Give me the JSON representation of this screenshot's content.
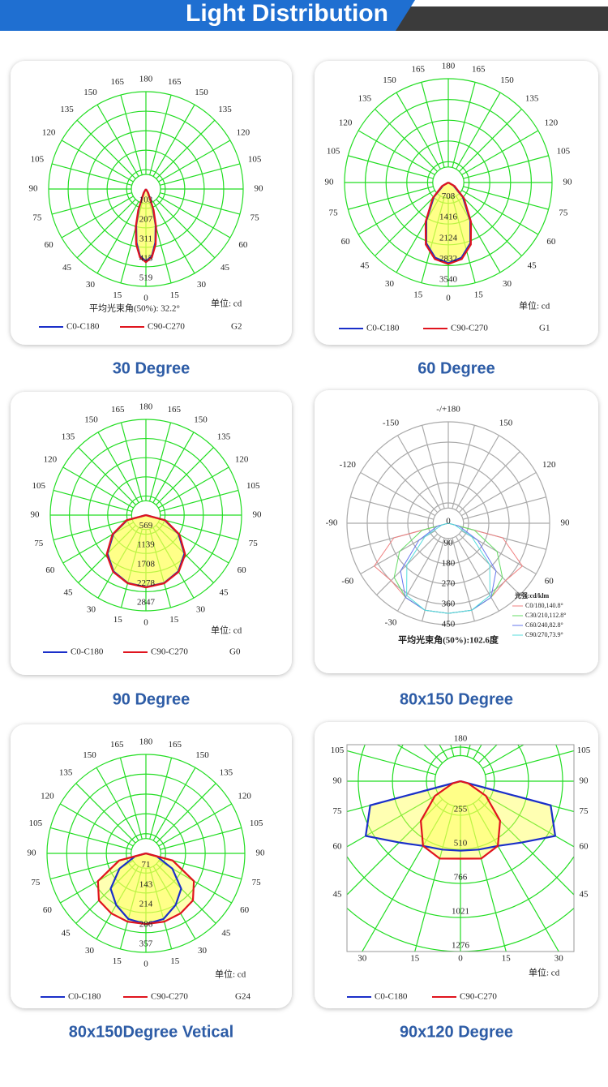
{
  "header": {
    "title": "Light Distribution"
  },
  "chart_data": [
    {
      "type": "polar",
      "title": "30 Degree",
      "note": "平均光束角(50%): 32.2°",
      "unit": "单位: cd",
      "code": "G2",
      "grid_color": "#22dd22",
      "area_color": "#ffff55",
      "angle_ticks": [
        0,
        15,
        30,
        45,
        60,
        75,
        90,
        105,
        120,
        135,
        150,
        165,
        180
      ],
      "rlim": [
        0,
        519
      ],
      "rticks": [
        103,
        207,
        311,
        415,
        519
      ],
      "theta": [
        -45,
        -30,
        -20,
        -15,
        -10,
        -5,
        0,
        5,
        10,
        15,
        20,
        30,
        45
      ],
      "series": [
        {
          "name": "C0-C180",
          "color": "#1a2fc9",
          "values": [
            0,
            20,
            110,
            200,
            290,
            360,
            385,
            360,
            290,
            200,
            110,
            20,
            0
          ]
        },
        {
          "name": "C90-C270",
          "color": "#e0141e",
          "values": [
            0,
            25,
            120,
            210,
            300,
            365,
            390,
            365,
            300,
            210,
            120,
            25,
            0
          ]
        }
      ]
    },
    {
      "type": "polar",
      "title": "60 Degree",
      "unit": "单位: cd",
      "code": "G1",
      "grid_color": "#22dd22",
      "area_color": "#ffff55",
      "angle_ticks": [
        0,
        15,
        30,
        45,
        60,
        75,
        90,
        105,
        120,
        135,
        150,
        165,
        180
      ],
      "rlim": [
        0,
        3540
      ],
      "rticks": [
        708,
        1416,
        2124,
        2832,
        3540
      ],
      "theta": [
        -90,
        -60,
        -45,
        -30,
        -20,
        -10,
        0,
        10,
        20,
        30,
        45,
        60,
        90
      ],
      "series": [
        {
          "name": "C0-C180",
          "color": "#1a2fc9",
          "values": [
            0,
            200,
            700,
            1500,
            2200,
            2600,
            2750,
            2600,
            2200,
            1500,
            700,
            200,
            0
          ]
        },
        {
          "name": "C90-C270",
          "color": "#e0141e",
          "values": [
            0,
            250,
            750,
            1550,
            2250,
            2650,
            2780,
            2650,
            2250,
            1550,
            750,
            250,
            0
          ]
        }
      ]
    },
    {
      "type": "polar",
      "title": "90 Degree",
      "unit": "单位: cd",
      "code": "G0",
      "grid_color": "#22dd22",
      "area_color": "#ffff55",
      "angle_ticks": [
        0,
        15,
        30,
        45,
        60,
        75,
        90,
        105,
        120,
        135,
        150,
        165,
        180
      ],
      "rlim": [
        0,
        2847
      ],
      "rticks": [
        569,
        1139,
        1708,
        2278,
        2847
      ],
      "theta": [
        -90,
        -75,
        -60,
        -45,
        -30,
        -15,
        0,
        15,
        30,
        45,
        60,
        75,
        90
      ],
      "series": [
        {
          "name": "C0-C180",
          "color": "#1a2fc9",
          "values": [
            0,
            580,
            1120,
            1620,
            1930,
            2090,
            2140,
            2090,
            1930,
            1620,
            1120,
            580,
            0
          ]
        },
        {
          "name": "C90-C270",
          "color": "#e0141e",
          "values": [
            0,
            600,
            1150,
            1650,
            1950,
            2100,
            2150,
            2100,
            1950,
            1650,
            1150,
            600,
            0
          ]
        }
      ]
    },
    {
      "type": "polar",
      "title": "80x150 Degree",
      "note": "平均光束角(50%):102.6度",
      "legend_title": "光强:cd/klm",
      "grid_color": "#aaaaaa",
      "angle_ticks": [
        {
          "value": 180,
          "label": "-/+180"
        },
        -150,
        150,
        -120,
        120,
        -90,
        90,
        -60,
        60,
        -30
      ],
      "rlim": [
        0,
        450
      ],
      "rticks": [
        0,
        90,
        180,
        270,
        360,
        450
      ],
      "theta": [
        -90,
        -75,
        -60,
        -45,
        -30,
        -15,
        0,
        15,
        30,
        45,
        60,
        75,
        90
      ],
      "series": [
        {
          "name": "C0/180,140.8°",
          "color": "#f08080",
          "values": [
            0,
            250,
            380,
            360,
            380,
            400,
            400,
            400,
            380,
            360,
            380,
            250,
            0
          ]
        },
        {
          "name": "C30/210,112.8°",
          "color": "#66dd66",
          "values": [
            0,
            120,
            250,
            340,
            380,
            400,
            400,
            400,
            380,
            340,
            250,
            120,
            0
          ]
        },
        {
          "name": "C60/240,82.8°",
          "color": "#6677ee",
          "values": [
            0,
            50,
            150,
            300,
            380,
            400,
            400,
            400,
            380,
            300,
            150,
            50,
            0
          ]
        },
        {
          "name": "C90/270,73.9°",
          "color": "#55dddd",
          "values": [
            0,
            30,
            120,
            260,
            370,
            400,
            400,
            400,
            370,
            260,
            120,
            30,
            0
          ]
        }
      ]
    },
    {
      "type": "polar",
      "title": "80x150Degree Vetical",
      "unit": "单位: cd",
      "code": "G24",
      "grid_color": "#22dd22",
      "area_color": "#ffff55",
      "angle_ticks": [
        0,
        15,
        30,
        45,
        60,
        75,
        90,
        105,
        120,
        135,
        150,
        165,
        180
      ],
      "rlim": [
        0,
        357
      ],
      "rticks": [
        71,
        143,
        214,
        286,
        357
      ],
      "theta": [
        -90,
        -75,
        -60,
        -45,
        -30,
        -15,
        0,
        15,
        30,
        45,
        60,
        75,
        90
      ],
      "series": [
        {
          "name": "C0-C180",
          "color": "#1a2fc9",
          "values": [
            0,
            40,
            110,
            180,
            215,
            245,
            255,
            245,
            215,
            180,
            110,
            40,
            0
          ]
        },
        {
          "name": "C90-C270",
          "color": "#e0141e",
          "values": [
            0,
            100,
            200,
            240,
            250,
            255,
            255,
            255,
            250,
            240,
            200,
            100,
            0
          ]
        }
      ]
    },
    {
      "type": "polar",
      "title": "90x120 Degree",
      "unit": "单位: cd",
      "grid_color": "#22dd22",
      "area_color": "#ffff55",
      "angle_ticks": [
        0,
        15,
        30,
        45,
        60,
        75,
        90,
        105,
        180
      ],
      "rlim": [
        0,
        1276
      ],
      "rticks": [
        255,
        510,
        766,
        1021,
        1276
      ],
      "theta": [
        -90,
        -75,
        -60,
        -45,
        -30,
        -15,
        0,
        15,
        30,
        45,
        60,
        75,
        90
      ],
      "series": [
        {
          "name": "C0-C180",
          "color": "#1a2fc9",
          "values": [
            0,
            700,
            820,
            650,
            560,
            530,
            520,
            530,
            560,
            650,
            820,
            700,
            0
          ]
        },
        {
          "name": "C90-C270",
          "color": "#e0141e",
          "values": [
            0,
            60,
            220,
            420,
            560,
            600,
            580,
            600,
            560,
            420,
            220,
            60,
            0
          ]
        }
      ]
    }
  ]
}
